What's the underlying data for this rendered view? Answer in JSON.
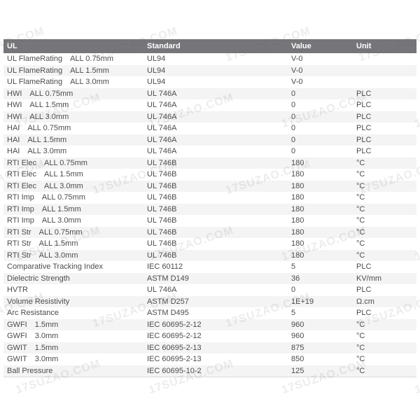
{
  "watermark": {
    "text": "17SUZAO.COM"
  },
  "table": {
    "columns": [
      {
        "label": "UL"
      },
      {
        "label": "Standard"
      },
      {
        "label": "Value"
      },
      {
        "label": "Unit"
      }
    ],
    "rows": [
      {
        "property": "UL FlameRating",
        "condition": "ALL 0.75mm",
        "standard": "UL94",
        "value": "V-0",
        "unit": ""
      },
      {
        "property": "UL FlameRating",
        "condition": "ALL 1.5mm",
        "standard": "UL94",
        "value": "V-0",
        "unit": ""
      },
      {
        "property": "UL FlameRating",
        "condition": "ALL 3.0mm",
        "standard": "UL94",
        "value": "V-0",
        "unit": ""
      },
      {
        "property": "HWI",
        "condition": "ALL 0.75mm",
        "standard": "UL 746A",
        "value": "0",
        "unit": "PLC"
      },
      {
        "property": "HWI",
        "condition": "ALL 1.5mm",
        "standard": "UL 746A",
        "value": "0",
        "unit": "PLC"
      },
      {
        "property": "HWI",
        "condition": "ALL 3.0mm",
        "standard": "UL 746A",
        "value": "0",
        "unit": "PLC"
      },
      {
        "property": "HAI",
        "condition": "ALL 0.75mm",
        "standard": "UL 746A",
        "value": "0",
        "unit": "PLC"
      },
      {
        "property": "HAI",
        "condition": "ALL 1.5mm",
        "standard": "UL 746A",
        "value": "0",
        "unit": "PLC"
      },
      {
        "property": "HAI",
        "condition": "ALL 3.0mm",
        "standard": "UL 746A",
        "value": "0",
        "unit": "PLC"
      },
      {
        "property": "RTI Elec",
        "condition": "ALL 0.75mm",
        "standard": "UL 746B",
        "value": "180",
        "unit": "°C"
      },
      {
        "property": "RTI Elec",
        "condition": "ALL 1.5mm",
        "standard": "UL 746B",
        "value": "180",
        "unit": "°C"
      },
      {
        "property": "RTI Elec",
        "condition": "ALL 3.0mm",
        "standard": "UL 746B",
        "value": "180",
        "unit": "°C"
      },
      {
        "property": "RTI Imp",
        "condition": "ALL 0.75mm",
        "standard": "UL 746B",
        "value": "180",
        "unit": "°C"
      },
      {
        "property": "RTI Imp",
        "condition": "ALL 1.5mm",
        "standard": "UL 746B",
        "value": "180",
        "unit": "°C"
      },
      {
        "property": "RTI Imp",
        "condition": "ALL 3.0mm",
        "standard": "UL 746B",
        "value": "180",
        "unit": "°C"
      },
      {
        "property": "RTI Str",
        "condition": "ALL 0.75mm",
        "standard": "UL 746B",
        "value": "180",
        "unit": "°C"
      },
      {
        "property": "RTI Str",
        "condition": "ALL 1.5mm",
        "standard": "UL 746B",
        "value": "180",
        "unit": "°C"
      },
      {
        "property": "RTI Str",
        "condition": "ALL 3.0mm",
        "standard": "UL 746B",
        "value": "180",
        "unit": "°C"
      },
      {
        "property": "Comparative Tracking Index",
        "condition": "",
        "standard": "IEC 60112",
        "value": "5",
        "unit": "PLC"
      },
      {
        "property": "Dielectric Strength",
        "condition": "",
        "standard": "ASTM D149",
        "value": "36",
        "unit": "KV/mm"
      },
      {
        "property": "HVTR",
        "condition": "",
        "standard": "UL 746A",
        "value": "0",
        "unit": "PLC"
      },
      {
        "property": "Volume Resistivity",
        "condition": "",
        "standard": "ASTM D257",
        "value": "1E+19",
        "unit": "Ω.cm"
      },
      {
        "property": "Arc Resistance",
        "condition": "",
        "standard": "ASTM D495",
        "value": "5",
        "unit": "PLC"
      },
      {
        "property": "GWFI",
        "condition": "1.5mm",
        "standard": "IEC 60695-2-12",
        "value": "960",
        "unit": "°C"
      },
      {
        "property": "GWFI",
        "condition": "3.0mm",
        "standard": "IEC 60695-2-12",
        "value": "960",
        "unit": "°C"
      },
      {
        "property": "GWIT",
        "condition": "1.5mm",
        "standard": "IEC 60695-2-13",
        "value": "875",
        "unit": "°C"
      },
      {
        "property": "GWIT",
        "condition": "3.0mm",
        "standard": "IEC 60695-2-13",
        "value": "850",
        "unit": "°C"
      },
      {
        "property": "Ball Pressure",
        "condition": "",
        "standard": "IEC 60695-10-2",
        "value": "125",
        "unit": "°C"
      }
    ]
  }
}
